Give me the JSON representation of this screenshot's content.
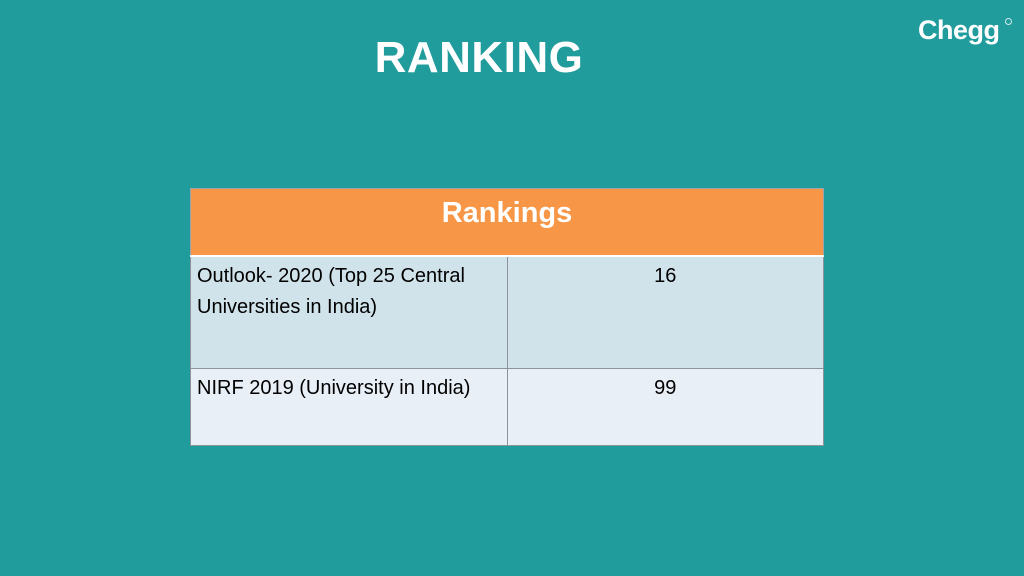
{
  "slide": {
    "title": "RANKING"
  },
  "logo": {
    "text": "Chegg",
    "icon": "chegg-logo"
  },
  "table": {
    "header": "Rankings",
    "rows": [
      {
        "label": "Outlook- 2020 (Top 25 Central Universities in India)",
        "value": "16"
      },
      {
        "label": "NIRF 2019 (University in India)",
        "value": "99"
      }
    ]
  },
  "colors": {
    "background": "#219c9c",
    "header_fill": "#f79646",
    "row_1_fill": "#d1e3ea",
    "row_2_fill": "#e9eff7"
  }
}
